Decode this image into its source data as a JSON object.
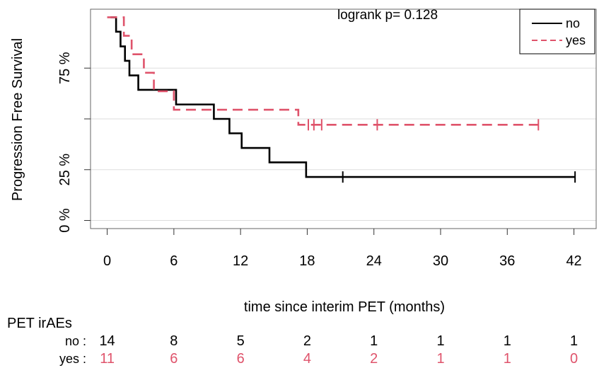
{
  "chart_data": {
    "type": "line",
    "subtype": "kaplan-meier",
    "title": "",
    "xlabel": "time since interim PET (months)",
    "ylabel": "Progression Free Survival",
    "xlim": [
      -1.5,
      44
    ],
    "ylim": [
      -0.04,
      1.04
    ],
    "x_ticks": [
      0,
      6,
      12,
      18,
      24,
      30,
      36,
      42
    ],
    "y_ticks": [
      0,
      0.25,
      0.5,
      0.75
    ],
    "y_tick_labels": [
      "0 %",
      "25 %",
      "",
      "75 %"
    ],
    "grid": "horizontal",
    "annotation": "logrank p=  0.128",
    "legend": {
      "position": "top-right",
      "entries": [
        {
          "label": "no",
          "color": "#000000",
          "dash": "solid"
        },
        {
          "label": "yes",
          "color": "#DF536B",
          "dash": "dashed"
        }
      ]
    },
    "series": [
      {
        "name": "no",
        "color": "#000000",
        "dash": "solid",
        "steps": [
          [
            0.3,
            1.0
          ],
          [
            0.8,
            0.929
          ],
          [
            1.2,
            0.857
          ],
          [
            1.6,
            0.786
          ],
          [
            2.0,
            0.714
          ],
          [
            2.8,
            0.643
          ],
          [
            6.2,
            0.571
          ],
          [
            9.6,
            0.5
          ],
          [
            11.0,
            0.429
          ],
          [
            12.1,
            0.357
          ],
          [
            14.6,
            0.286
          ],
          [
            17.9,
            0.214
          ]
        ],
        "end": 42.1,
        "censor": [
          21.2,
          42.1
        ]
      },
      {
        "name": "yes",
        "color": "#DF536B",
        "dash": "dashed",
        "steps": [
          [
            0.0,
            1.0
          ],
          [
            1.5,
            0.909
          ],
          [
            2.2,
            0.818
          ],
          [
            3.3,
            0.727
          ],
          [
            4.2,
            0.636
          ],
          [
            6.0,
            0.545
          ],
          [
            17.2,
            0.471
          ]
        ],
        "end": 38.8,
        "censor": [
          18.1,
          18.6,
          19.3,
          24.3,
          38.8
        ]
      }
    ],
    "risk_table": {
      "title": "PET irAEs",
      "times": [
        0,
        6,
        12,
        18,
        24,
        30,
        36,
        42
      ],
      "rows": [
        {
          "label": "no :",
          "color": "#000000",
          "values": [
            "14",
            "8",
            "5",
            "2",
            "1",
            "1",
            "1",
            "1"
          ]
        },
        {
          "label": "yes :",
          "color": "#DF536B",
          "values": [
            "11",
            "6",
            "6",
            "4",
            "2",
            "1",
            "1",
            "0"
          ]
        }
      ]
    }
  }
}
